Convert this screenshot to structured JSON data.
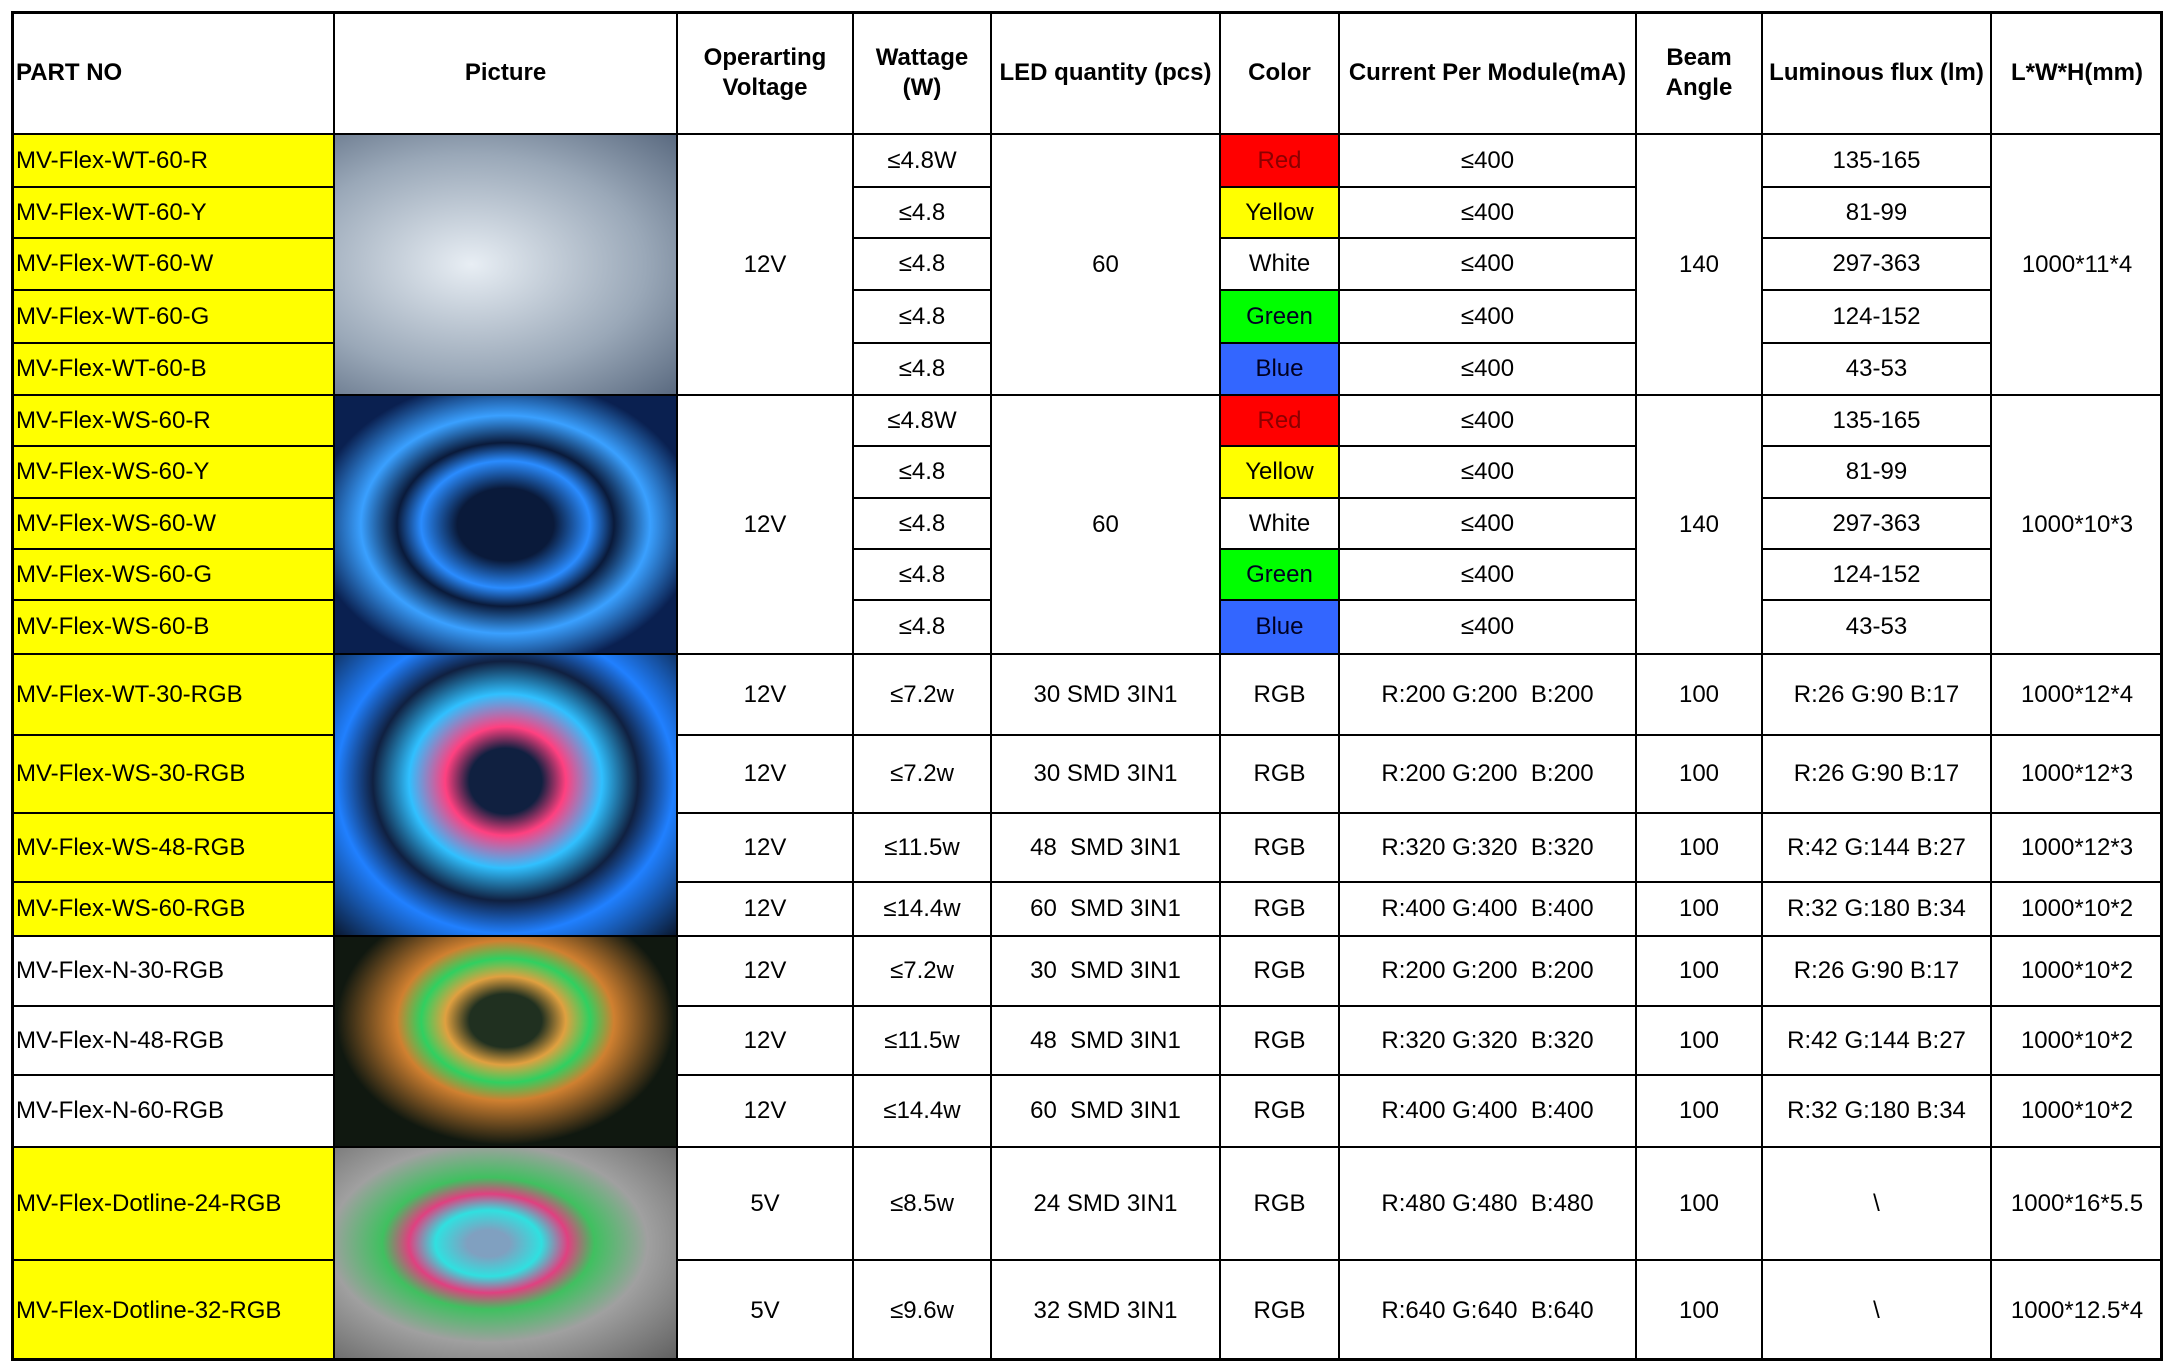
{
  "table": {
    "columns": [
      "PART NO",
      "Picture",
      "Operarting Voltage",
      "Wattage (W)",
      "LED quantity (pcs)",
      "Color",
      "Current Per Module(mA)",
      "Beam Angle",
      "Luminous flux (lm)",
      "L*W*H(mm)"
    ],
    "sections": [
      {
        "voltage": "12V",
        "led_quantity": "60",
        "beam_angle": "140",
        "dimensions": "1000*11*4",
        "rows": [
          {
            "part_no": "MV-Flex-WT-60-R",
            "part_fill": "#ffff00",
            "wattage": "≤4.8W",
            "color": "Red",
            "color_fill": "#ff0000",
            "current": "≤400",
            "flux": "135-165"
          },
          {
            "part_no": "MV-Flex-WT-60-Y",
            "part_fill": "#ffff00",
            "wattage": "≤4.8",
            "color": "Yellow",
            "color_fill": "#ffff00",
            "current": "≤400",
            "flux": "81-99"
          },
          {
            "part_no": "MV-Flex-WT-60-W",
            "part_fill": "#ffff00",
            "wattage": "≤4.8",
            "color": "White",
            "color_fill": "#ffffff",
            "current": "≤400",
            "flux": "297-363"
          },
          {
            "part_no": "MV-Flex-WT-60-G",
            "part_fill": "#ffff00",
            "wattage": "≤4.8",
            "color": "Green",
            "color_fill": "#00ff00",
            "current": "≤400",
            "flux": "124-152"
          },
          {
            "part_no": "MV-Flex-WT-60-B",
            "part_fill": "#ffff00",
            "wattage": "≤4.8",
            "color": "Blue",
            "color_fill": "#3366ff",
            "current": "≤400",
            "flux": "43-53"
          }
        ]
      },
      {
        "voltage": "12V",
        "led_quantity": "60",
        "beam_angle": "140",
        "dimensions": "1000*10*3",
        "rows": [
          {
            "part_no": "MV-Flex-WS-60-R",
            "part_fill": "#ffff00",
            "wattage": "≤4.8W",
            "color": "Red",
            "color_fill": "#ff0000",
            "current": "≤400",
            "flux": "135-165"
          },
          {
            "part_no": "MV-Flex-WS-60-Y",
            "part_fill": "#ffff00",
            "wattage": "≤4.8",
            "color": "Yellow",
            "color_fill": "#ffff00",
            "current": "≤400",
            "flux": "81-99"
          },
          {
            "part_no": "MV-Flex-WS-60-W",
            "part_fill": "#ffff00",
            "wattage": "≤4.8",
            "color": "White",
            "color_fill": "#ffffff",
            "current": "≤400",
            "flux": "297-363"
          },
          {
            "part_no": "MV-Flex-WS-60-G",
            "part_fill": "#ffff00",
            "wattage": "≤4.8",
            "color": "Green",
            "color_fill": "#00ff00",
            "current": "≤400",
            "flux": "124-152"
          },
          {
            "part_no": "MV-Flex-WS-60-B",
            "part_fill": "#ffff00",
            "wattage": "≤4.8",
            "color": "Blue",
            "color_fill": "#3366ff",
            "current": "≤400",
            "flux": "43-53"
          }
        ]
      },
      {
        "rows": [
          {
            "part_no": "MV-Flex-WT-30-RGB",
            "part_fill": "#ffff00",
            "voltage": "12V",
            "wattage": "≤7.2w",
            "led_quantity": "30 SMD 3IN1",
            "color": "RGB",
            "current": "R:200 G:200  B:200",
            "beam_angle": "100",
            "flux": "R:26 G:90 B:17",
            "dimensions": "1000*12*4"
          },
          {
            "part_no": "MV-Flex-WS-30-RGB",
            "part_fill": "#ffff00",
            "voltage": "12V",
            "wattage": "≤7.2w",
            "led_quantity": "30 SMD 3IN1",
            "color": "RGB",
            "current": "R:200 G:200  B:200",
            "beam_angle": "100",
            "flux": "R:26 G:90 B:17",
            "dimensions": "1000*12*3"
          },
          {
            "part_no": "MV-Flex-WS-48-RGB",
            "part_fill": "#ffff00",
            "voltage": "12V",
            "wattage": "≤11.5w",
            "led_quantity": "48  SMD 3IN1",
            "color": "RGB",
            "current": "R:320 G:320  B:320",
            "beam_angle": "100",
            "flux": "R:42 G:144 B:27",
            "dimensions": "1000*12*3"
          },
          {
            "part_no": "MV-Flex-WS-60-RGB",
            "part_fill": "#ffff00",
            "voltage": "12V",
            "wattage": "≤14.4w",
            "led_quantity": "60  SMD 3IN1",
            "color": "RGB",
            "current": "R:400 G:400  B:400",
            "beam_angle": "100",
            "flux": "R:32 G:180 B:34",
            "dimensions": "1000*10*2"
          },
          {
            "part_no": "MV-Flex-N-30-RGB",
            "part_fill": "#ffffff",
            "voltage": "12V",
            "wattage": "≤7.2w",
            "led_quantity": "30  SMD 3IN1",
            "color": "RGB",
            "current": "R:200 G:200  B:200",
            "beam_angle": "100",
            "flux": "R:26 G:90 B:17",
            "dimensions": "1000*10*2"
          },
          {
            "part_no": "MV-Flex-N-48-RGB",
            "part_fill": "#ffffff",
            "voltage": "12V",
            "wattage": "≤11.5w",
            "led_quantity": "48  SMD 3IN1",
            "color": "RGB",
            "current": "R:320 G:320  B:320",
            "beam_angle": "100",
            "flux": "R:42 G:144 B:27",
            "dimensions": "1000*10*2"
          },
          {
            "part_no": "MV-Flex-N-60-RGB",
            "part_fill": "#ffffff",
            "voltage": "12V",
            "wattage": "≤14.4w",
            "led_quantity": "60  SMD 3IN1",
            "color": "RGB",
            "current": "R:400 G:400  B:400",
            "beam_angle": "100",
            "flux": "R:32 G:180 B:34",
            "dimensions": "1000*10*2"
          },
          {
            "part_no": "MV-Flex-Dotline-24-RGB",
            "part_fill": "#ffff00",
            "voltage": "5V",
            "wattage": "≤8.5w",
            "led_quantity": "24 SMD 3IN1",
            "color": "RGB",
            "current": "R:480 G:480  B:480",
            "beam_angle": "100",
            "flux": "\\",
            "dimensions": "1000*16*5.5"
          },
          {
            "part_no": "MV-Flex-Dotline-32-RGB",
            "part_fill": "#ffff00",
            "voltage": "5V",
            "wattage": "≤9.6w",
            "led_quantity": "32 SMD 3IN1",
            "color": "RGB",
            "current": "R:640 G:640  B:640",
            "beam_angle": "100",
            "flux": "\\",
            "dimensions": "1000*12.5*4"
          }
        ]
      }
    ]
  }
}
